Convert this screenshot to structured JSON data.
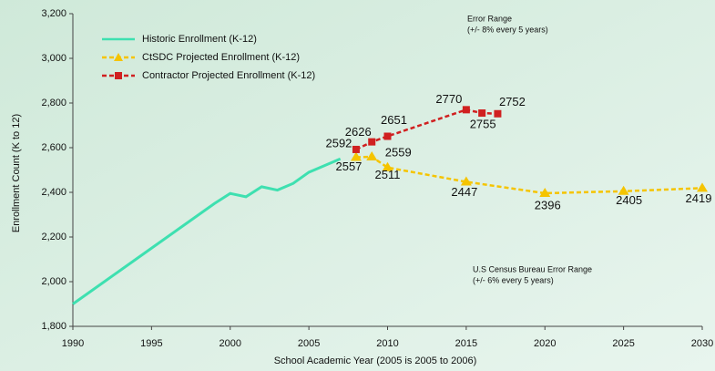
{
  "chart_data": {
    "type": "line",
    "xlabel": "School Academic Year (2005 is 2005 to 2006)",
    "ylabel": "Enrollment Count (K to 12)",
    "annotations": [
      "Error Range",
      "(+/- 8% every 5 years)",
      "U.S Census Bureau Error Range",
      "(+/- 6% every 5 years)"
    ],
    "xlim": [
      1990,
      2030
    ],
    "xticks": [
      1990,
      1995,
      2000,
      2005,
      2010,
      2015,
      2020,
      2025,
      2030
    ],
    "ylim": [
      1800,
      3200
    ],
    "yticks": [
      {
        "value": 1800,
        "label": "1,800"
      },
      {
        "value": 2000,
        "label": "2,000"
      },
      {
        "value": 2200,
        "label": "2,200"
      },
      {
        "value": 2400,
        "label": "2,400"
      },
      {
        "value": 2600,
        "label": "2,600"
      },
      {
        "value": 2800,
        "label": "2,800"
      },
      {
        "value": 3000,
        "label": "3,000"
      },
      {
        "value": 3200,
        "label": "3,200"
      }
    ],
    "series": [
      {
        "name": "Historic Enrollment (K-12)",
        "color": "#3ee0b0",
        "x": [
          1990,
          1991,
          1992,
          1993,
          1994,
          1995,
          1996,
          1997,
          1998,
          1999,
          2000,
          2001,
          2002,
          2003,
          2004,
          2005,
          2006,
          2007
        ],
        "values": [
          1900,
          1950,
          2000,
          2050,
          2100,
          2150,
          2200,
          2250,
          2300,
          2350,
          2395,
          2380,
          2425,
          2410,
          2440,
          2490,
          2520,
          2550
        ]
      },
      {
        "name": "CtSDC Projected Enrollment (K-12)",
        "color": "#f5c400",
        "x": [
          2008,
          2009,
          2010,
          2015,
          2020,
          2025,
          2030
        ],
        "values": [
          2557,
          2559,
          2511,
          2447,
          2396,
          2405,
          2419
        ]
      },
      {
        "name": "Contractor Projected Enrollment (K-12)",
        "color": "#d02020",
        "x": [
          2008,
          2009,
          2010,
          2015,
          2016,
          2017
        ],
        "values": [
          2592,
          2626,
          2651,
          2770,
          2755,
          2752
        ]
      }
    ]
  }
}
